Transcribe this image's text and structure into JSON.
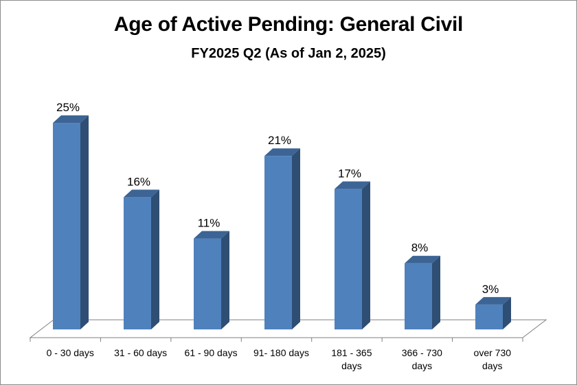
{
  "chart_data": {
    "type": "bar",
    "title": "Age of Active Pending: General Civil",
    "subtitle": "FY2025 Q2 (As of Jan 2, 2025)",
    "categories": [
      [
        "0 - 30 days"
      ],
      [
        "31 - 60 days"
      ],
      [
        "61 - 90 days"
      ],
      [
        "91- 180 days"
      ],
      [
        "181 - 365",
        "days"
      ],
      [
        "366 - 730",
        "days"
      ],
      [
        "over 730",
        "days"
      ]
    ],
    "values": [
      25,
      16,
      11,
      21,
      17,
      8,
      3
    ],
    "value_labels": [
      "25%",
      "16%",
      "11%",
      "21%",
      "17%",
      "8%",
      "3%"
    ],
    "unit": "%",
    "ylim": [
      0,
      27
    ],
    "grid": false,
    "legend": "none",
    "style": "3d-column",
    "colors": {
      "bar_front": "#4f81bd",
      "bar_side": "#2f4e74",
      "bar_top": "#3c6494",
      "floor": "#7f7f7f"
    }
  }
}
